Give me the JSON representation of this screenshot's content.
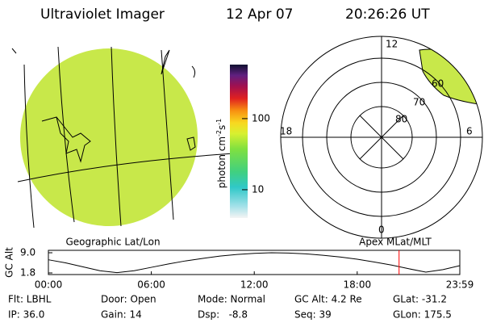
{
  "header": {
    "title": "Ultraviolet Imager",
    "date": "12 Apr 07",
    "time": "20:26:26 UT"
  },
  "left_panel": {
    "caption": "Geographic Lat/Lon"
  },
  "colorbar": {
    "label": "photon cm",
    "exp1": "-2",
    "unit2": "s",
    "exp2": "-1",
    "log": true,
    "lim": [
      4,
      575
    ],
    "ticks": [
      10,
      100
    ]
  },
  "right_panel": {
    "caption": "Apex MLat/MLT",
    "lat_labels": [
      "80",
      "70",
      "60"
    ],
    "mlt_labels": {
      "top": "12",
      "left": "18",
      "right": "6",
      "bottom": "0"
    }
  },
  "chart_data": {
    "type": "line",
    "ylabel": "GC Alt",
    "x": [
      0,
      1,
      2,
      3,
      4,
      5,
      6,
      7,
      8,
      9,
      10,
      11,
      12,
      13,
      14,
      15,
      16,
      17,
      18,
      19,
      20,
      21,
      22,
      23,
      23.98
    ],
    "series": [
      {
        "name": "GC Alt",
        "color": "#000000",
        "values": [
          6.5,
          5.4,
          4.0,
          2.6,
          1.9,
          2.6,
          3.8,
          5.0,
          6.1,
          7.0,
          7.8,
          8.4,
          8.8,
          9.0,
          8.9,
          8.6,
          8.1,
          7.5,
          6.7,
          5.7,
          4.6,
          3.3,
          2.1,
          3.0,
          4.4
        ]
      }
    ],
    "xlim": [
      0,
      23.98
    ],
    "ylim": [
      1.8,
      9
    ],
    "xticks": [
      {
        "value": 0,
        "label": "00:00"
      },
      {
        "value": 6,
        "label": "06:00"
      },
      {
        "value": 12,
        "label": "12:00"
      },
      {
        "value": 18,
        "label": "18:00"
      },
      {
        "value": 23.98,
        "label": "23:59"
      }
    ],
    "yticks": [
      1.8,
      {
        "value": 9,
        "label": "9.0"
      }
    ],
    "marker": {
      "x": 20.44,
      "color": "#ff0000"
    }
  },
  "footer": [
    [
      "Flt: LBHL",
      "IP: 36.0"
    ],
    [
      "Door: Open",
      "Gain: 14"
    ],
    [
      "Mode: Normal",
      "Dsp:   -8.8"
    ],
    [
      "GC Alt: 4.2 Re",
      "Seq: 39"
    ],
    [
      "GLat: -31.2",
      "GLon: 175.5"
    ]
  ]
}
